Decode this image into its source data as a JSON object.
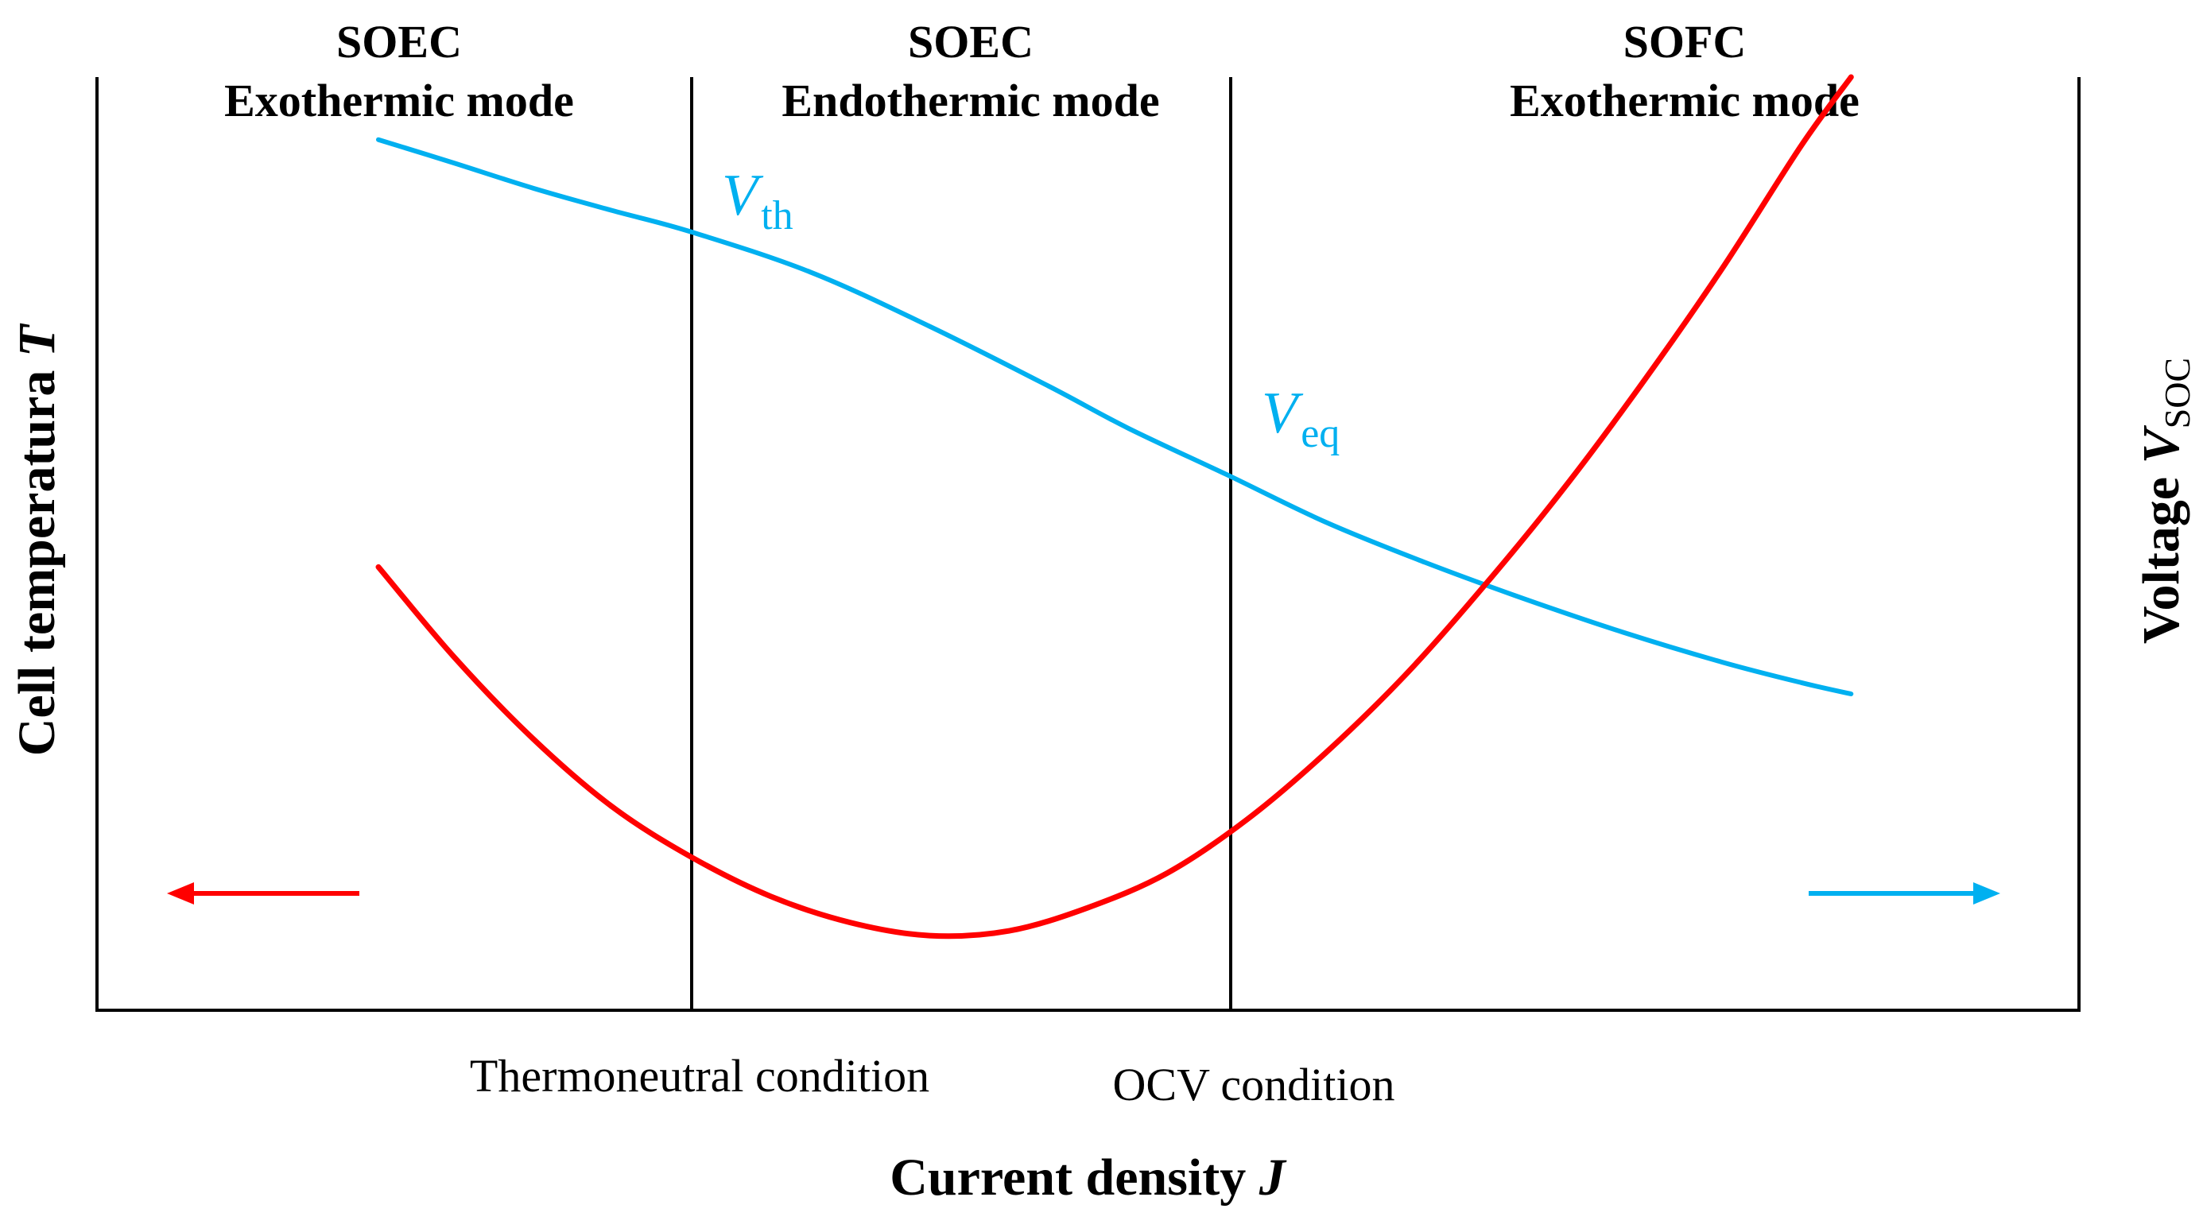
{
  "chart_data": {
    "type": "line",
    "x_axis": {
      "label": "Current density",
      "symbol": "J"
    },
    "y_axis_left": {
      "label": "Cell temperatura",
      "symbol": "T"
    },
    "y_axis_right": {
      "label": "Voltage",
      "symbol": "V",
      "subscript": "SOC"
    },
    "regions": [
      {
        "line1": "SOEC",
        "line2": "Exothermic mode"
      },
      {
        "line1": "SOEC",
        "line2": "Endothermic mode"
      },
      {
        "line1": "SOFC",
        "line2": "Exothermic mode"
      }
    ],
    "boundaries": [
      {
        "label": "Thermoneutral condition"
      },
      {
        "label": "OCV condition"
      }
    ],
    "x_range": [
      0,
      100
    ],
    "y_range": [
      0,
      100
    ],
    "series": [
      {
        "name": "Voltage V_SOC",
        "axis": "right",
        "color": "#00b0f0",
        "x": [
          14.2,
          18,
          22,
          26,
          30,
          36,
          42,
          48,
          52,
          57,
          62,
          67,
          72,
          77,
          82,
          86,
          88.5
        ],
        "y": [
          93.3,
          90.8,
          88.1,
          85.7,
          83.4,
          79.1,
          73.3,
          66.9,
          62.4,
          57.4,
          52.3,
          48.0,
          44.1,
          40.5,
          37.3,
          35.1,
          33.9
        ]
      },
      {
        "name": "Cell temperature T",
        "axis": "left",
        "color": "#ff0000",
        "x": [
          14.2,
          18,
          22,
          26,
          30,
          34,
          38,
          42,
          46,
          50,
          54,
          58,
          62,
          66,
          70,
          74,
          78,
          82,
          86,
          88.5
        ],
        "y": [
          47.5,
          37.9,
          29.1,
          21.8,
          16.4,
          12.2,
          9.4,
          8.0,
          8.5,
          11.0,
          14.7,
          20.4,
          27.6,
          35.9,
          45.5,
          55.9,
          67.3,
          79.5,
          92.7,
          100.0
        ]
      }
    ],
    "labels": {
      "v_th": {
        "main": "V",
        "sub": "th"
      },
      "v_eq": {
        "main": "V",
        "sub": "eq"
      }
    },
    "arrows": [
      {
        "direction": "left",
        "color": "#ff0000",
        "meaning": "left axis"
      },
      {
        "direction": "right",
        "color": "#00b0f0",
        "meaning": "right axis"
      }
    ]
  }
}
